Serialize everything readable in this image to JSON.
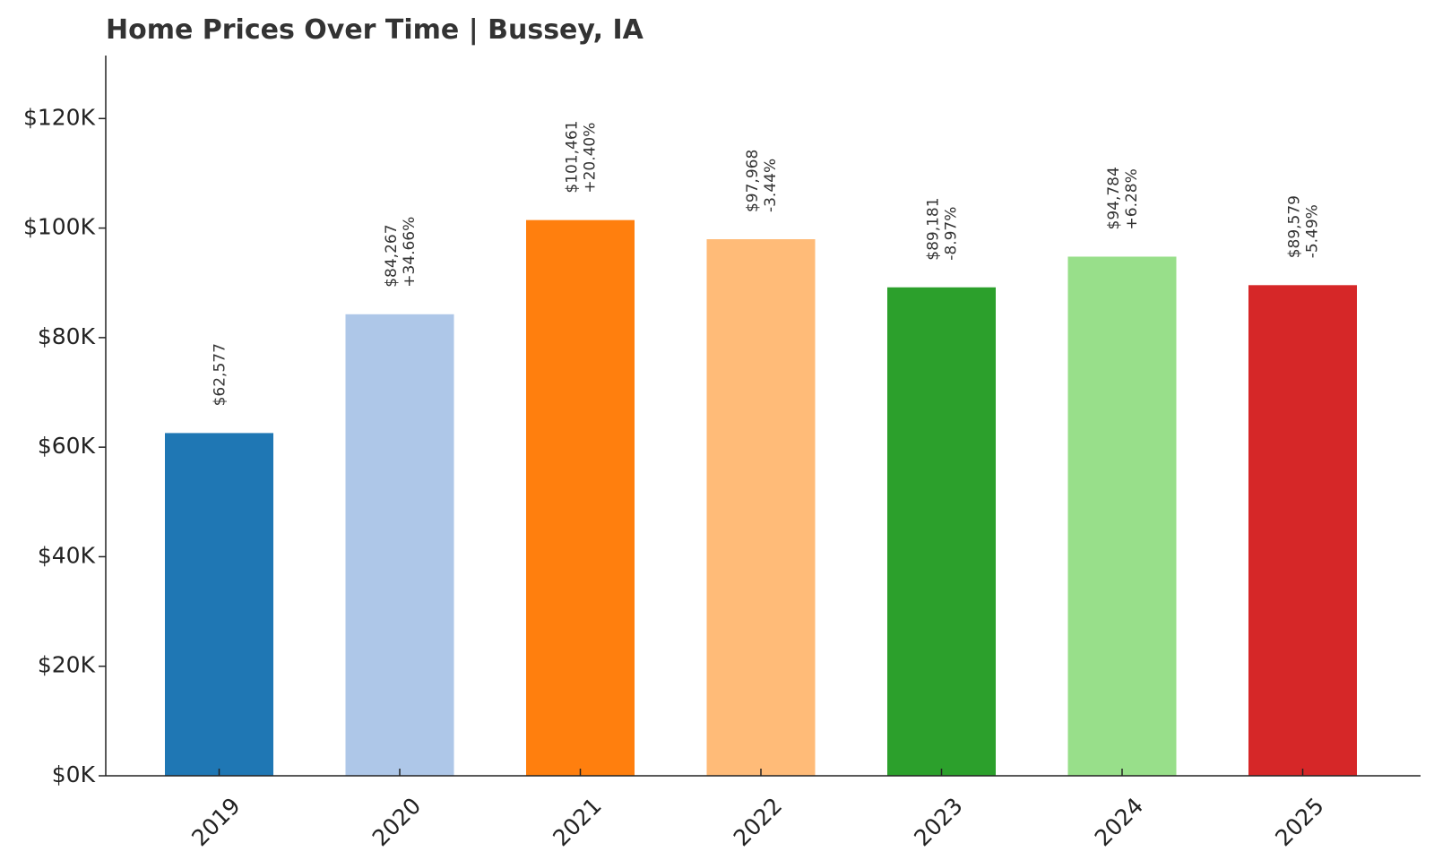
{
  "chart_data": {
    "type": "bar",
    "title": "Home Prices Over Time | Bussey, IA",
    "xlabel": "",
    "ylabel": "",
    "categories": [
      "2019",
      "2020",
      "2021",
      "2022",
      "2023",
      "2024",
      "2025"
    ],
    "values": [
      62577,
      84267,
      101461,
      97968,
      89181,
      94784,
      89579
    ],
    "value_labels": [
      "$62,577",
      "$84,267",
      "$101,461",
      "$97,968",
      "$89,181",
      "$94,784",
      "$89,579"
    ],
    "change_labels": [
      "",
      "+34.66%",
      "+20.40%",
      "-3.44%",
      "-8.97%",
      "+6.28%",
      "-5.49%"
    ],
    "colors": [
      "#1f77b4",
      "#aec7e8",
      "#ff7f0e",
      "#ffbb78",
      "#2ca02c",
      "#98df8a",
      "#d62728"
    ],
    "yticks": [
      0,
      20000,
      40000,
      60000,
      80000,
      100000,
      120000
    ],
    "ytick_labels": [
      "$0K",
      "$20K",
      "$40K",
      "$60K",
      "$80K",
      "$100K",
      "$120K"
    ],
    "ylim": [
      0,
      131500
    ],
    "grid": false,
    "legend": "none"
  }
}
